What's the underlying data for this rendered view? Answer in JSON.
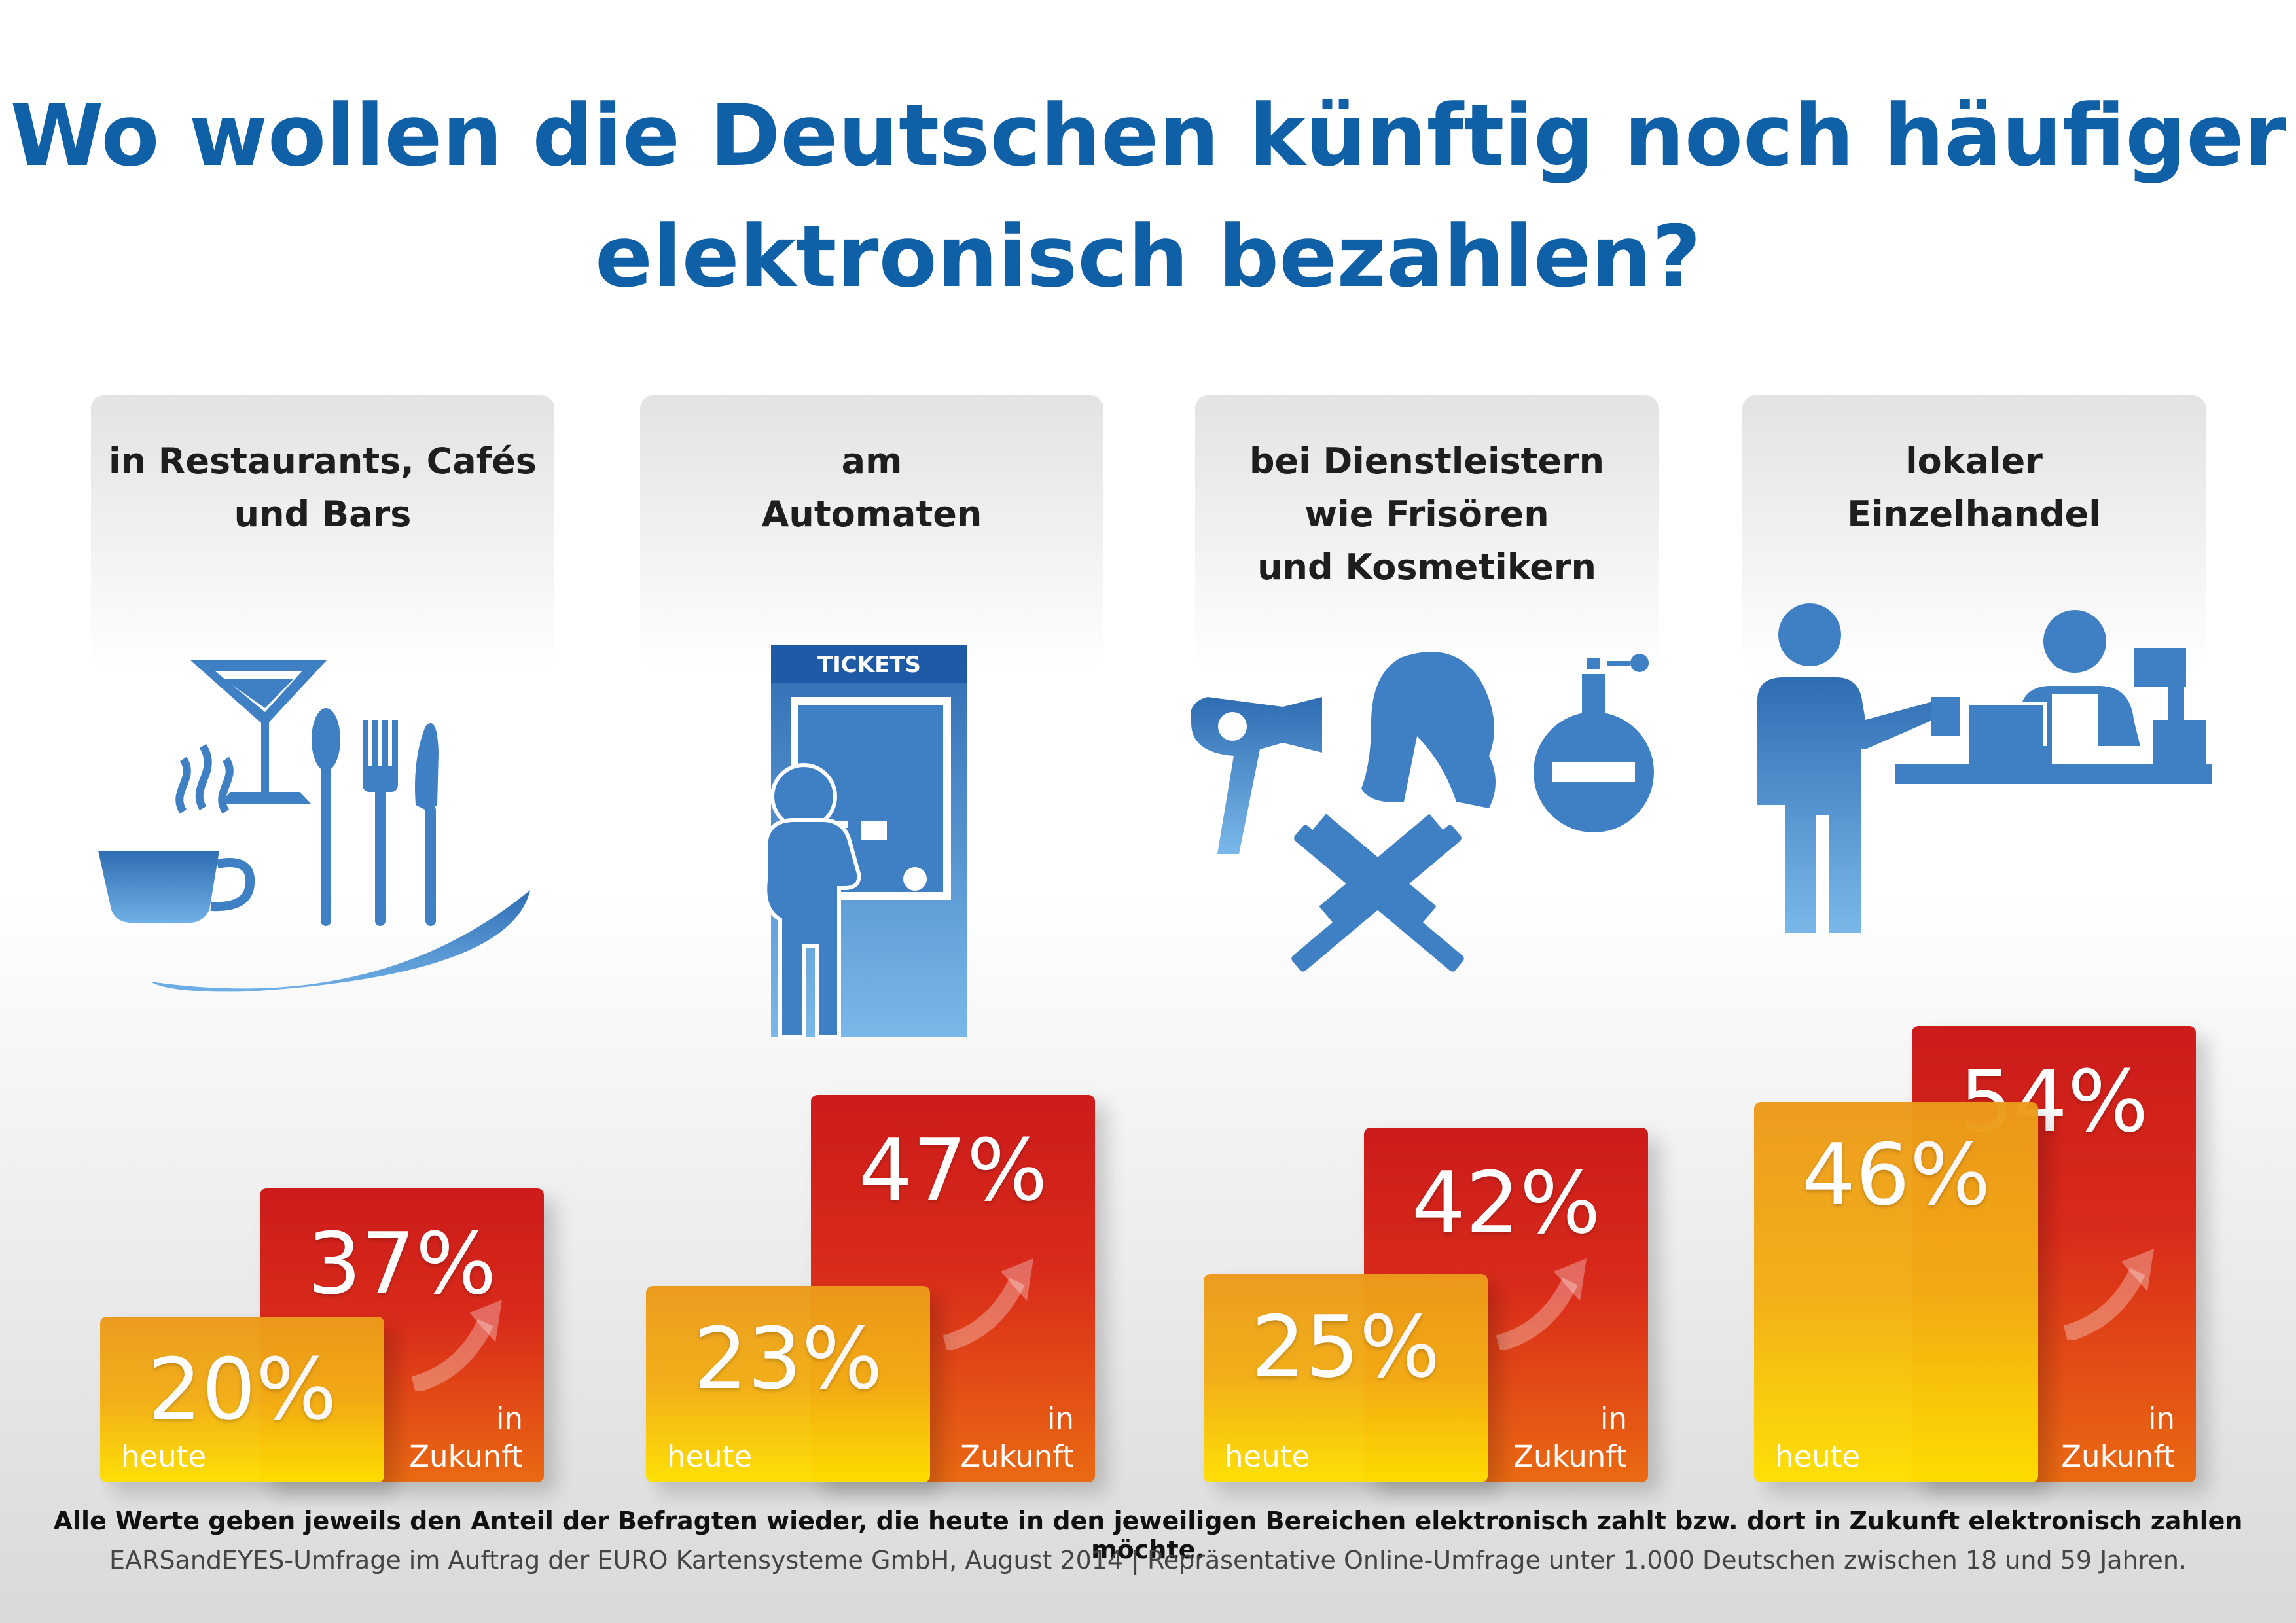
{
  "title": "Wo wollen die Deutschen künftig noch häufiger elektronisch bezahlen?",
  "chart_data": {
    "type": "bar",
    "title": "Wo wollen die Deutschen künftig noch häufiger elektronisch bezahlen?",
    "categories": [
      "in Restaurants, Cafés und Bars",
      "am Automaten",
      "bei Dienstleistern wie Frisören und Kosmetikern",
      "lokaler Einzelhandel"
    ],
    "series": [
      {
        "name": "heute",
        "values": [
          20,
          23,
          25,
          46
        ]
      },
      {
        "name": "in Zukunft",
        "values": [
          37,
          47,
          42,
          54
        ]
      }
    ],
    "unit": "%",
    "labels": [
      "20%",
      "37%",
      "23%",
      "47%",
      "25%",
      "42%",
      "46%",
      "54%"
    ]
  },
  "cards": [
    {
      "label": "in Restaurants, Cafés und Bars"
    },
    {
      "label": "am Automaten"
    },
    {
      "label": "bei Dienstleistern wie Frisören und Kosmetikern"
    },
    {
      "label": "lokaler Einzelhandel"
    }
  ],
  "bars": {
    "today_label": "heute",
    "future_label": "in Zukunft"
  },
  "icons": [
    "restaurant-icon",
    "ticket-machine-icon",
    "hairdresser-icon",
    "shop-counter-icon"
  ],
  "ticket_sign": "TICKETS",
  "colors": {
    "title": "#1060a8",
    "icon": "#3f7fc4",
    "future": "#cc1b1b",
    "today": "#f3ae14"
  },
  "footer": {
    "note": "Alle Werte geben jeweils den Anteil der Befragten wieder, die heute in den jeweiligen Bereichen elektronisch zahlt bzw. dort in Zukunft elektronisch zahlen möchte.",
    "source": "EARSandEYES-Umfrage im Auftrag der EURO Kartensysteme GmbH, August 2014 | Repräsentative Online-Umfrage unter 1.000 Deutschen zwischen 18 und 59 Jahren."
  }
}
